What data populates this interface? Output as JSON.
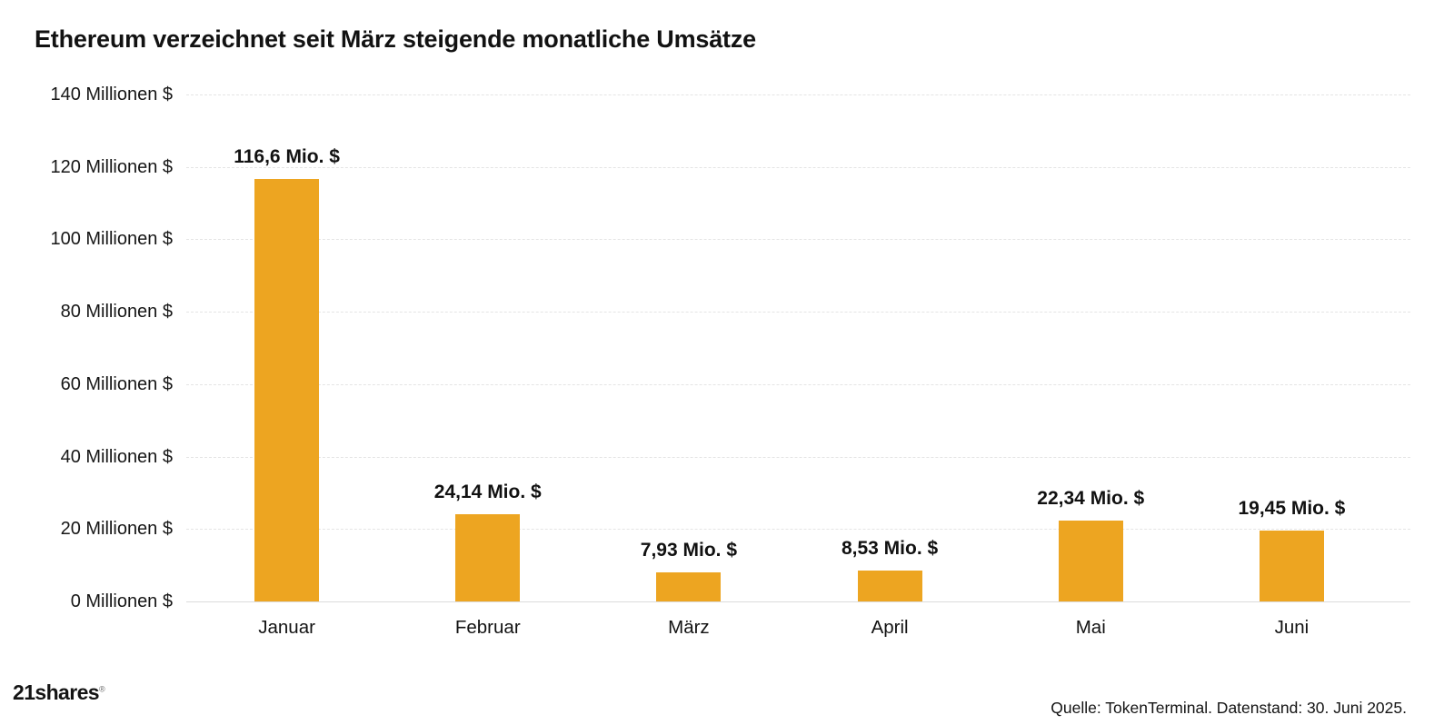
{
  "title": "Ethereum verzeichnet seit März steigende monatliche Umsätze",
  "chart_data": {
    "type": "bar",
    "title": "Ethereum verzeichnet seit März steigende monatliche Umsätze",
    "categories": [
      "Januar",
      "Februar",
      "März",
      "April",
      "Mai",
      "Juni"
    ],
    "values": [
      116.6,
      24.14,
      7.93,
      8.53,
      22.34,
      19.45
    ],
    "value_labels": [
      "116,6 Mio. $",
      "24,14 Mio. $",
      "7,93 Mio. $",
      "8,53 Mio. $",
      "22,34 Mio. $",
      "19,45 Mio. $"
    ],
    "xlabel": "",
    "ylabel": "",
    "ylim": [
      0,
      140
    ],
    "ytick_step": 20,
    "ytick_labels": [
      "0 Millionen $",
      "20 Millionen $",
      "40 Millionen $",
      "60 Millionen $",
      "80 Millionen $",
      "100 Millionen $",
      "120 Millionen $",
      "140 Millionen $"
    ],
    "grid": "horizontal-dashed",
    "legend": "none",
    "bar_color": "#EDA521"
  },
  "footer": {
    "logo_text": "21shares",
    "logo_mark": "®",
    "source": "Quelle: TokenTerminal. Datenstand: 30. Juni 2025."
  },
  "colors": {
    "bar": "#EDA521",
    "text": "#111111",
    "grid": "#e4e4e4",
    "zero_line": "#dcdcdc",
    "background": "#ffffff"
  }
}
